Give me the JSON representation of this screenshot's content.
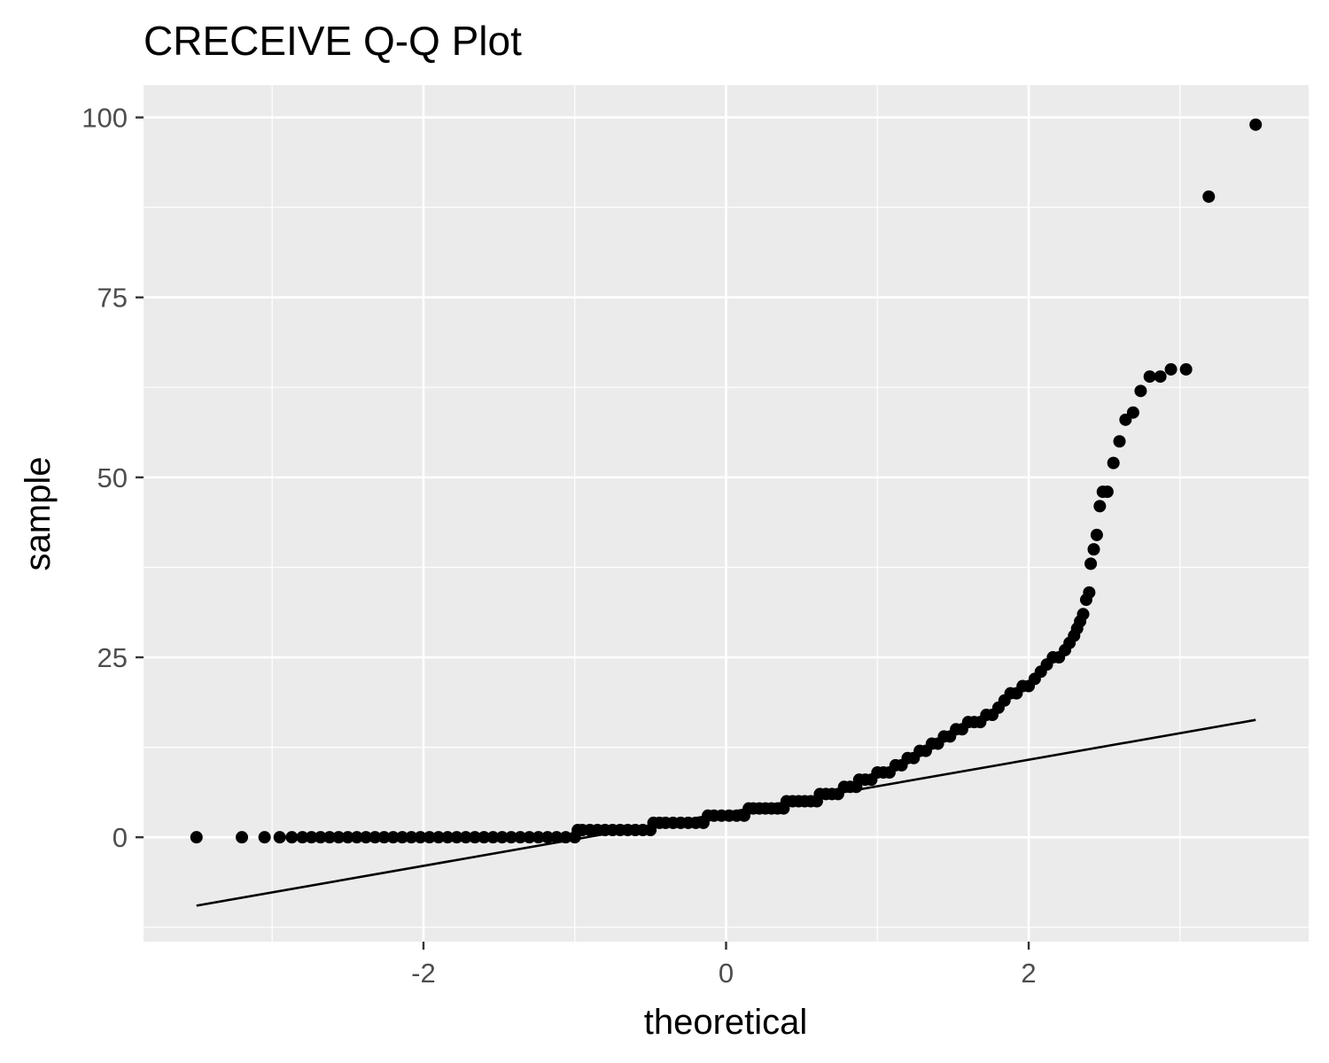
{
  "chart_data": {
    "type": "scatter",
    "title": "CRECEIVE Q-Q Plot",
    "xlabel": "theoretical",
    "ylabel": "sample",
    "xlim": [
      -3.85,
      3.85
    ],
    "ylim": [
      -14.5,
      104.5
    ],
    "x_ticks": [
      -2,
      0,
      2
    ],
    "x_tick_labels": [
      "-2",
      "0",
      "2"
    ],
    "y_ticks": [
      0,
      25,
      50,
      75,
      100
    ],
    "y_tick_labels": [
      "0",
      "25",
      "50",
      "75",
      "100"
    ],
    "x_minor_ticks": [
      -3,
      -1,
      1,
      3
    ],
    "y_minor_ticks": [
      -12.5,
      12.5,
      37.5,
      62.5,
      87.5
    ],
    "grid": true,
    "background": "#ebebeb",
    "grid_color": "#ffffff",
    "point_color": "#000000",
    "reference_line": {
      "x": [
        -3.5,
        3.5
      ],
      "y": [
        -9.5,
        16.3
      ]
    },
    "points_x": [
      -3.5,
      -3.2,
      -3.05,
      -2.95,
      -2.87,
      -2.8,
      -2.74,
      -2.68,
      -2.62,
      -2.56,
      -2.5,
      -2.44,
      -2.38,
      -2.32,
      -2.26,
      -2.2,
      -2.14,
      -2.08,
      -2.02,
      -1.96,
      -1.9,
      -1.84,
      -1.78,
      -1.72,
      -1.66,
      -1.6,
      -1.54,
      -1.48,
      -1.42,
      -1.36,
      -1.3,
      -1.24,
      -1.18,
      -1.12,
      -1.06,
      -1.0,
      -0.98,
      -0.95,
      -0.9,
      -0.85,
      -0.8,
      -0.75,
      -0.7,
      -0.65,
      -0.6,
      -0.55,
      -0.5,
      -0.48,
      -0.44,
      -0.4,
      -0.35,
      -0.3,
      -0.25,
      -0.2,
      -0.15,
      -0.12,
      -0.08,
      -0.03,
      0.02,
      0.07,
      0.12,
      0.15,
      0.18,
      0.22,
      0.26,
      0.3,
      0.34,
      0.38,
      0.4,
      0.44,
      0.48,
      0.52,
      0.56,
      0.6,
      0.62,
      0.66,
      0.7,
      0.74,
      0.78,
      0.82,
      0.86,
      0.88,
      0.92,
      0.96,
      1.0,
      1.04,
      1.08,
      1.12,
      1.16,
      1.2,
      1.24,
      1.28,
      1.32,
      1.36,
      1.4,
      1.44,
      1.48,
      1.52,
      1.56,
      1.6,
      1.64,
      1.68,
      1.72,
      1.76,
      1.8,
      1.84,
      1.88,
      1.92,
      1.96,
      2.0,
      2.04,
      2.08,
      2.12,
      2.16,
      2.2,
      2.24,
      2.27,
      2.3,
      2.32,
      2.34,
      2.36,
      2.38,
      2.4,
      2.41,
      2.43,
      2.45,
      2.47,
      2.49,
      2.52,
      2.56,
      2.6,
      2.64,
      2.69,
      2.74,
      2.8,
      2.87,
      2.94,
      3.04,
      3.19,
      3.5
    ],
    "points_y": [
      0,
      0,
      0,
      0,
      0,
      0,
      0,
      0,
      0,
      0,
      0,
      0,
      0,
      0,
      0,
      0,
      0,
      0,
      0,
      0,
      0,
      0,
      0,
      0,
      0,
      0,
      0,
      0,
      0,
      0,
      0,
      0,
      0,
      0,
      0,
      0,
      1,
      1,
      1,
      1,
      1,
      1,
      1,
      1,
      1,
      1,
      1,
      2,
      2,
      2,
      2,
      2,
      2,
      2,
      2,
      3,
      3,
      3,
      3,
      3,
      3,
      4,
      4,
      4,
      4,
      4,
      4,
      4,
      5,
      5,
      5,
      5,
      5,
      5,
      6,
      6,
      6,
      6,
      7,
      7,
      7,
      8,
      8,
      8,
      9,
      9,
      9,
      10,
      10,
      11,
      11,
      12,
      12,
      13,
      13,
      14,
      14,
      15,
      15,
      16,
      16,
      16,
      17,
      17,
      18,
      19,
      20,
      20,
      21,
      21,
      22,
      23,
      24,
      25,
      25,
      26,
      27,
      28,
      29,
      30,
      31,
      33,
      34,
      38,
      40,
      42,
      46,
      48,
      48,
      52,
      55,
      58,
      59,
      62,
      64,
      64,
      65,
      65,
      89,
      99
    ]
  }
}
